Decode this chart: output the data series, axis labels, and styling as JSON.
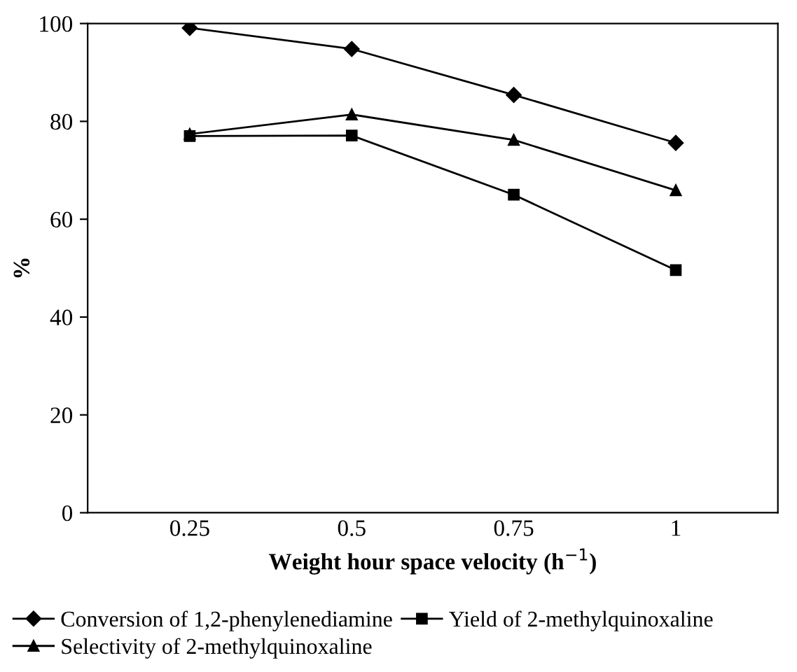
{
  "chart_data": {
    "type": "line",
    "xlabel": "Weight hour space velocity (h$^{−1}$)",
    "ylabel": "%",
    "categories": [
      "0.25",
      "0.5",
      "0.75",
      "1"
    ],
    "series": [
      {
        "name": "Conversion of 1,2-phenylenediamine",
        "color": "#000000",
        "marker": "diamond",
        "values": [
          99.1,
          94.8,
          85.4,
          75.6
        ]
      },
      {
        "name": "Yield of 2-methylquinoxaline",
        "color": "#000000",
        "marker": "square",
        "values": [
          77.0,
          77.1,
          65.0,
          49.6
        ]
      },
      {
        "name": "Selectivity of 2-methylquinoxaline",
        "color": "#000000",
        "marker": "triangle",
        "values": [
          77.4,
          81.4,
          76.2,
          65.9
        ]
      }
    ],
    "ylim": [
      0,
      100
    ],
    "yticks": [
      0,
      20,
      40,
      60,
      80,
      100
    ],
    "grid": false,
    "legend": "bottom",
    "line_style": "solid"
  }
}
